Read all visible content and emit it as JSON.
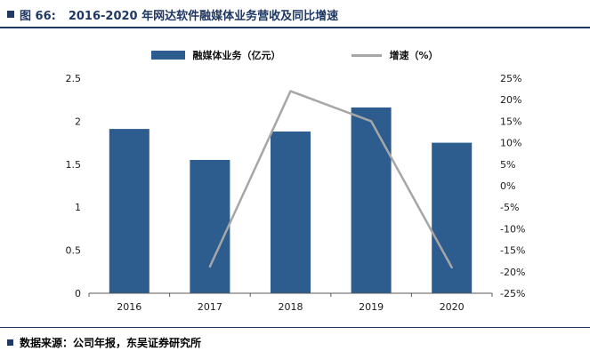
{
  "header": {
    "figure_label": "图 66:",
    "title": "2016-2020 年网达软件融媒体业务营收及同比增速"
  },
  "footer": {
    "source": "数据来源：公司年报，东吴证券研究所"
  },
  "colors": {
    "accent": "#1f3864",
    "bar": "#2d5c8f",
    "line": "#a6a6a6",
    "axis": "#595959",
    "tick_text": "#1a1a1a"
  },
  "chart_data": {
    "type": "bar",
    "title": "2016-2020 年网达软件融媒体业务营收及同比增速",
    "categories": [
      "2016",
      "2017",
      "2018",
      "2019",
      "2020"
    ],
    "series": [
      {
        "name": "融媒体业务（亿元）",
        "chart": "bar",
        "axis": "left",
        "values": [
          1.91,
          1.55,
          1.88,
          2.16,
          1.75
        ]
      },
      {
        "name": "增速（%）",
        "chart": "line",
        "axis": "right",
        "values": [
          null,
          -18.8,
          22,
          15,
          -19
        ]
      }
    ],
    "left_axis": {
      "min": 0,
      "max": 2.5,
      "tick_values": [
        0,
        0.5,
        1,
        1.5,
        2,
        2.5
      ],
      "tick_labels": [
        "0",
        "0.5",
        "1",
        "1.5",
        "2",
        "2.5"
      ]
    },
    "right_axis": {
      "min": -25,
      "max": 25,
      "tick_values": [
        -25,
        -20,
        -15,
        -10,
        -5,
        0,
        5,
        10,
        15,
        20,
        25
      ],
      "tick_labels": [
        "-25%",
        "-20%",
        "-15%",
        "-10%",
        "-5%",
        "0%",
        "5%",
        "10%",
        "15%",
        "20%",
        "25%"
      ]
    },
    "grid": "off",
    "legend_position": "top-center"
  }
}
